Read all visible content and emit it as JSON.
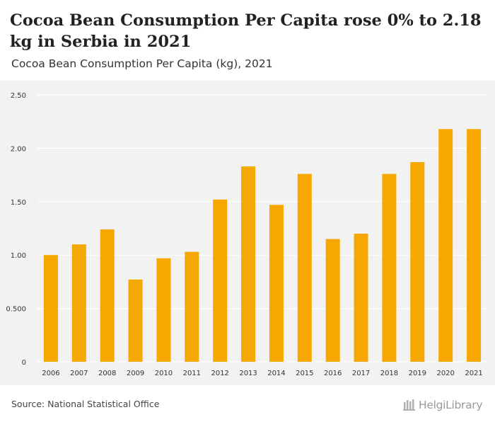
{
  "title": "Cocoa Bean Consumption Per Capita rose 0% to 2.18 kg in Serbia in 2021",
  "subtitle": "Cocoa Bean Consumption Per Capita (kg), 2021",
  "source": "Source: National Statistical Office",
  "logo": {
    "icon": "helgilibrary-logo-icon",
    "text": "HelgiLibrary"
  },
  "colors": {
    "bar": "#f7a800",
    "grid": "#ffffff",
    "panel": "#f2f2f2"
  },
  "chart_data": {
    "type": "bar",
    "categories": [
      "2006",
      "2007",
      "2008",
      "2009",
      "2010",
      "2011",
      "2012",
      "2013",
      "2014",
      "2015",
      "2016",
      "2017",
      "2018",
      "2019",
      "2020",
      "2021"
    ],
    "values": [
      1.0,
      1.1,
      1.24,
      0.77,
      0.97,
      1.03,
      1.52,
      1.83,
      1.47,
      1.76,
      1.15,
      1.2,
      1.76,
      1.87,
      2.18,
      2.18
    ],
    "ylim": [
      0,
      2.5
    ],
    "yticks": [
      0,
      0.5,
      1.0,
      1.5,
      2.0,
      2.5
    ],
    "ytick_labels": [
      "0",
      "0.500",
      "1.00",
      "1.50",
      "2.00",
      "2.50"
    ],
    "xlabel": "",
    "ylabel": "",
    "title": "Cocoa Bean Consumption Per Capita (kg), 2021"
  }
}
